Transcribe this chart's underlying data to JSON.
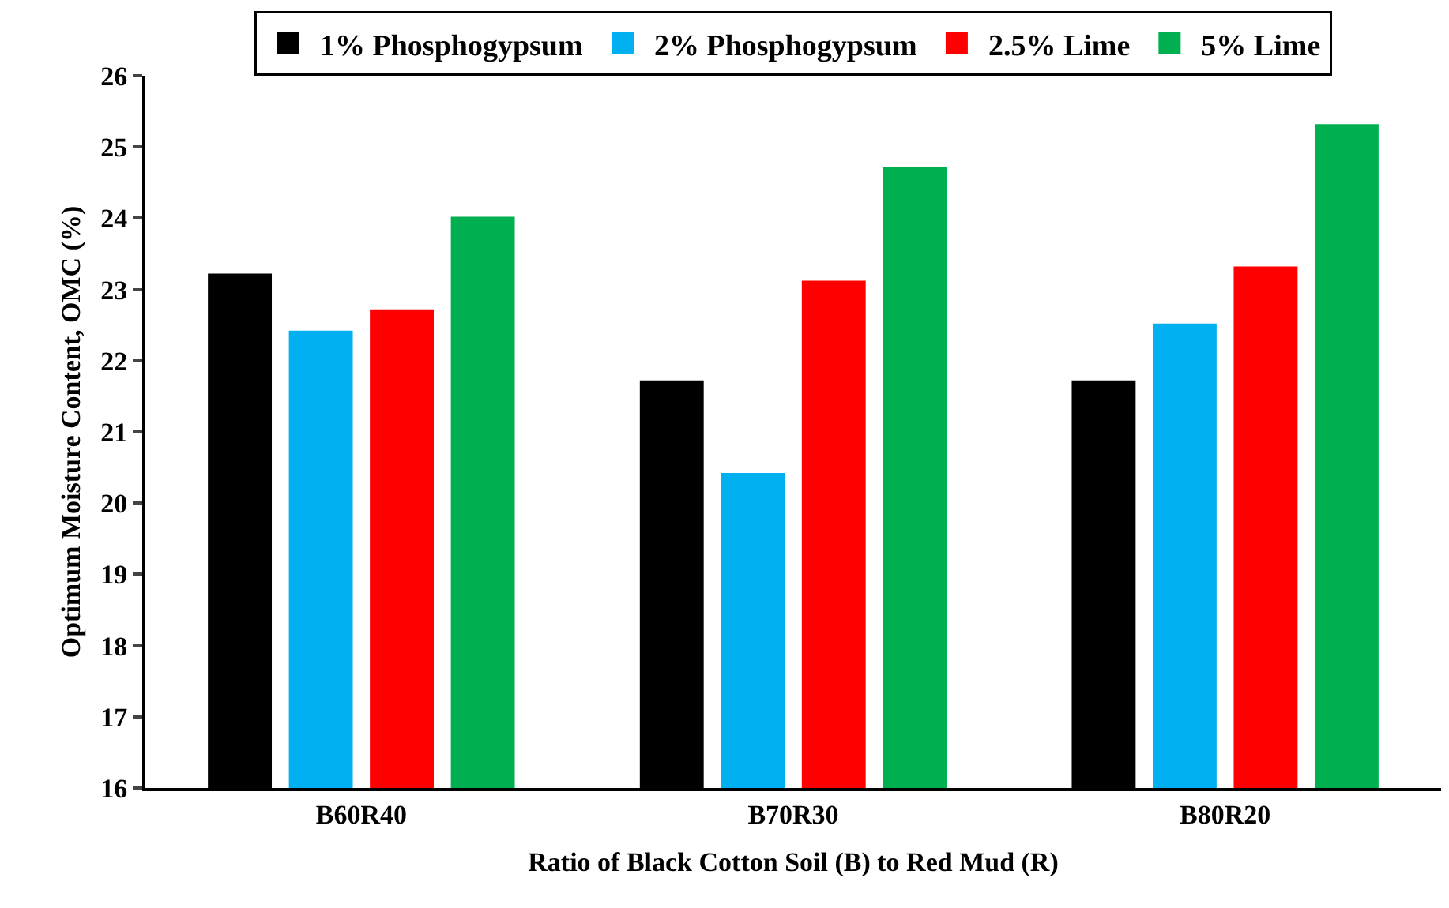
{
  "chart_data": {
    "type": "bar",
    "xlabel": "Ratio of Black Cotton Soil (B) to Red Mud (R)",
    "ylabel": "Optimum Moisture Content, OMC (%)",
    "categories": [
      "B60R40",
      "B70R30",
      "B80R20"
    ],
    "series": [
      {
        "name": "1% Phosphogypsum",
        "color": "#000000",
        "values": [
          23.2,
          21.7,
          21.7
        ]
      },
      {
        "name": "2% Phosphogypsum",
        "color": "#00b0f0",
        "values": [
          22.4,
          20.4,
          22.5
        ]
      },
      {
        "name": "2.5% Lime",
        "color": "#ff0000",
        "values": [
          22.7,
          23.1,
          23.3
        ]
      },
      {
        "name": "5% Lime",
        "color": "#00b050",
        "values": [
          24.0,
          24.7,
          25.3
        ]
      }
    ],
    "ylim": [
      16,
      26
    ],
    "yticks": [
      16,
      17,
      18,
      19,
      20,
      21,
      22,
      23,
      24,
      25,
      26
    ],
    "grid": false,
    "legend": "top"
  }
}
